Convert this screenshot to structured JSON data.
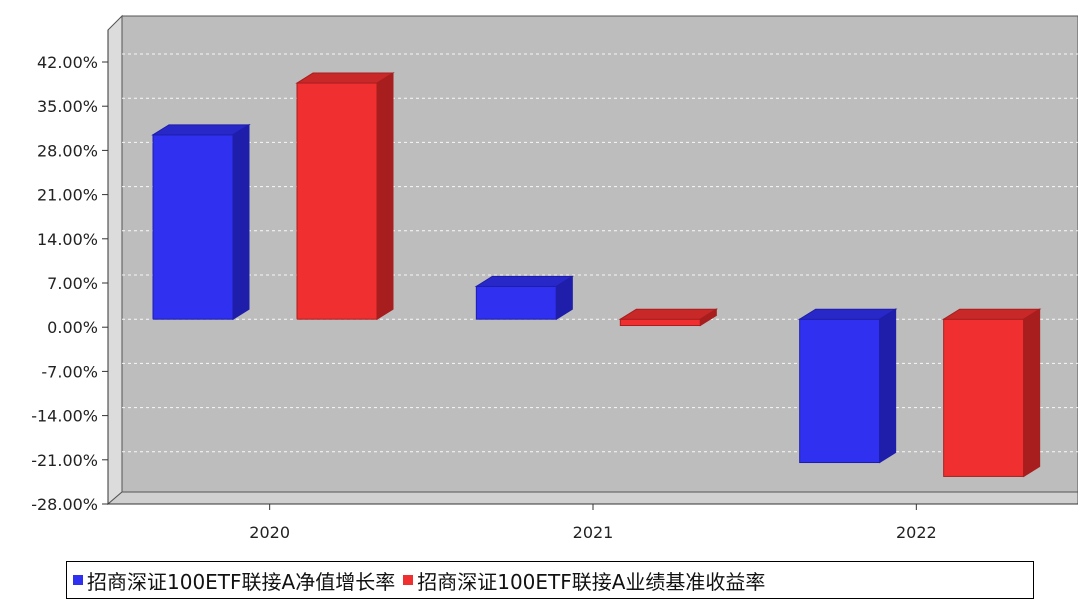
{
  "chart_data": {
    "type": "bar",
    "categories": [
      "2020",
      "2021",
      "2022"
    ],
    "series": [
      {
        "name": "招商深证100ETF联接A净值增长率",
        "values": [
          29.2,
          5.2,
          -22.7
        ],
        "color": "#3030f0",
        "side_color": "#1e1eaa",
        "top_color": "#2828c8"
      },
      {
        "name": "招商深证100ETF联接A业绩基准收益率",
        "values": [
          37.4,
          -1.0,
          -24.9
        ],
        "color": "#f03030",
        "side_color": "#a81e1e",
        "top_color": "#c82828"
      }
    ],
    "y_ticks": [
      "42.00%",
      "35.00%",
      "28.00%",
      "21.00%",
      "14.00%",
      "7.00%",
      "0.00%",
      "-7.00%",
      "-14.00%",
      "-21.00%",
      "-28.00%"
    ],
    "ylim": [
      -28,
      42
    ],
    "grid": true,
    "legend_position": "bottom"
  }
}
